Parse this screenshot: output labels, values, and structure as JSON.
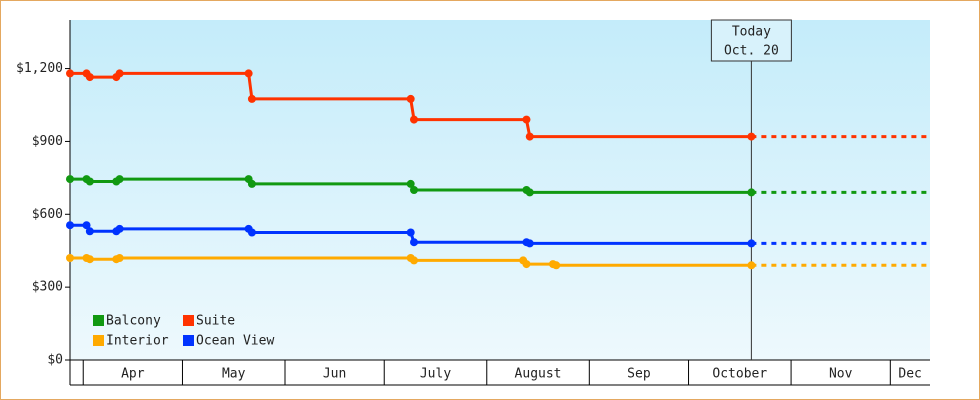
{
  "chart_data": {
    "type": "line",
    "step": true,
    "xlim": [
      0,
      260
    ],
    "xticks": [
      4,
      34,
      65,
      95,
      126,
      157,
      187,
      218,
      248
    ],
    "categories": [
      "Apr",
      "May",
      "Jun",
      "July",
      "August",
      "Sep",
      "October",
      "Nov",
      "Dec"
    ],
    "ylim": [
      0,
      1400
    ],
    "yticks": [
      {
        "value": 0,
        "label": "$0"
      },
      {
        "value": 300,
        "label": "$300"
      },
      {
        "value": 600,
        "label": "$600"
      },
      {
        "value": 900,
        "label": "$900"
      },
      {
        "value": 1200,
        "label": "$1,200"
      }
    ],
    "grid": false,
    "legend": "bottom-left",
    "annotation": {
      "x": 206,
      "lines": [
        "Today",
        "Oct. 20"
      ]
    },
    "series": [
      {
        "name": "Balcony",
        "color": "#119911",
        "x": [
          0,
          5,
          6,
          14,
          15,
          54,
          55,
          103,
          104,
          138,
          139,
          206
        ],
        "values": [
          745,
          745,
          735,
          735,
          745,
          745,
          725,
          725,
          700,
          700,
          690,
          690
        ]
      },
      {
        "name": "Suite",
        "color": "#ff3300",
        "x": [
          0,
          5,
          6,
          14,
          15,
          54,
          55,
          103,
          104,
          138,
          139,
          206
        ],
        "values": [
          1180,
          1180,
          1165,
          1165,
          1180,
          1180,
          1075,
          1075,
          990,
          990,
          920,
          920
        ]
      },
      {
        "name": "Interior",
        "color": "#ffaa00",
        "x": [
          0,
          5,
          6,
          14,
          15,
          103,
          104,
          137,
          138,
          146,
          147,
          206
        ],
        "values": [
          420,
          420,
          415,
          415,
          420,
          420,
          410,
          410,
          395,
          395,
          390,
          390
        ]
      },
      {
        "name": "Ocean View",
        "color": "#0033ff",
        "x": [
          0,
          5,
          6,
          14,
          15,
          54,
          55,
          103,
          104,
          138,
          139,
          206
        ],
        "values": [
          555,
          555,
          530,
          530,
          540,
          540,
          525,
          525,
          485,
          485,
          480,
          480
        ]
      }
    ]
  }
}
